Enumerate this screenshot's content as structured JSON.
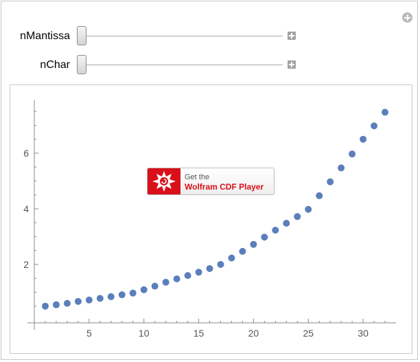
{
  "controls": [
    {
      "label": "nMantissa",
      "value": 0
    },
    {
      "label": "nChar",
      "value": 0
    }
  ],
  "cdf_badge": {
    "line1": "Get the",
    "line2": "Wolfram CDF Player",
    "color": "#d8101a"
  },
  "colors": {
    "point": "#5b7fbb"
  },
  "chart_data": {
    "type": "scatter",
    "x": [
      1,
      2,
      3,
      4,
      5,
      6,
      7,
      8,
      9,
      10,
      11,
      12,
      13,
      14,
      15,
      16,
      17,
      18,
      19,
      20,
      21,
      22,
      23,
      24,
      25,
      26,
      27,
      28,
      29,
      30,
      31,
      32
    ],
    "y": [
      0.5,
      0.55,
      0.6,
      0.67,
      0.72,
      0.78,
      0.84,
      0.91,
      0.97,
      1.09,
      1.22,
      1.36,
      1.48,
      1.6,
      1.72,
      1.85,
      2.0,
      2.23,
      2.47,
      2.72,
      2.98,
      3.23,
      3.48,
      3.72,
      3.98,
      4.47,
      4.97,
      5.47,
      5.97,
      6.5,
      6.98,
      7.47
    ],
    "xticks": [
      5,
      10,
      15,
      20,
      25,
      30
    ],
    "yticks": [
      2,
      4,
      6
    ],
    "xlim": [
      0,
      33
    ],
    "ylim": [
      -0.1,
      7.9
    ],
    "grid": false
  }
}
